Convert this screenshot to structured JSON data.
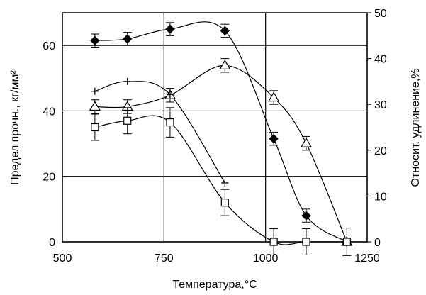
{
  "chart_data": {
    "type": "line",
    "xlabel": "Температура,°С",
    "ylabel_left": "Предел прочн., кг/мм²",
    "ylabel_right": "Относит. удлинение,%",
    "xlim": [
      500,
      1250
    ],
    "ylim_left": [
      0,
      70
    ],
    "ylim_right": [
      0,
      50
    ],
    "x_ticks": [
      "500",
      "750",
      "1000",
      "1250"
    ],
    "y_left_ticks": [
      "0",
      "20",
      "40",
      "60"
    ],
    "y_right_ticks": [
      "0",
      "10",
      "20",
      "30",
      "40",
      "50"
    ],
    "grid": true,
    "legend": "none",
    "series": [
      {
        "marker": "diamond-filled",
        "axis": "left",
        "x": [
          580,
          660,
          765,
          900,
          1020,
          1100,
          1200
        ],
        "y": [
          61.5,
          62,
          65,
          64.5,
          31.5,
          8,
          0
        ],
        "err": [
          2,
          2,
          2,
          2,
          2,
          2,
          0
        ]
      },
      {
        "marker": "triangle-open",
        "axis": "right",
        "x": [
          580,
          660,
          765,
          900,
          1020,
          1100,
          1200
        ],
        "y": [
          29.5,
          29.5,
          32,
          38.5,
          31.5,
          21.5,
          0
        ],
        "err": [
          1.5,
          1.5,
          1.5,
          1.5,
          1.5,
          1.5,
          3
        ]
      },
      {
        "marker": "plus",
        "axis": "left",
        "x": [
          580,
          660,
          765,
          900
        ],
        "y": [
          46,
          49,
          45,
          18
        ],
        "err": [
          0,
          0,
          0,
          0
        ]
      },
      {
        "marker": "square-open",
        "axis": "left",
        "x": [
          580,
          660,
          765,
          900,
          1020,
          1100,
          1200
        ],
        "y": [
          35,
          37,
          36.5,
          12,
          0,
          0,
          0
        ],
        "err": [
          4,
          4,
          4.5,
          4,
          4,
          4,
          0
        ]
      }
    ]
  }
}
